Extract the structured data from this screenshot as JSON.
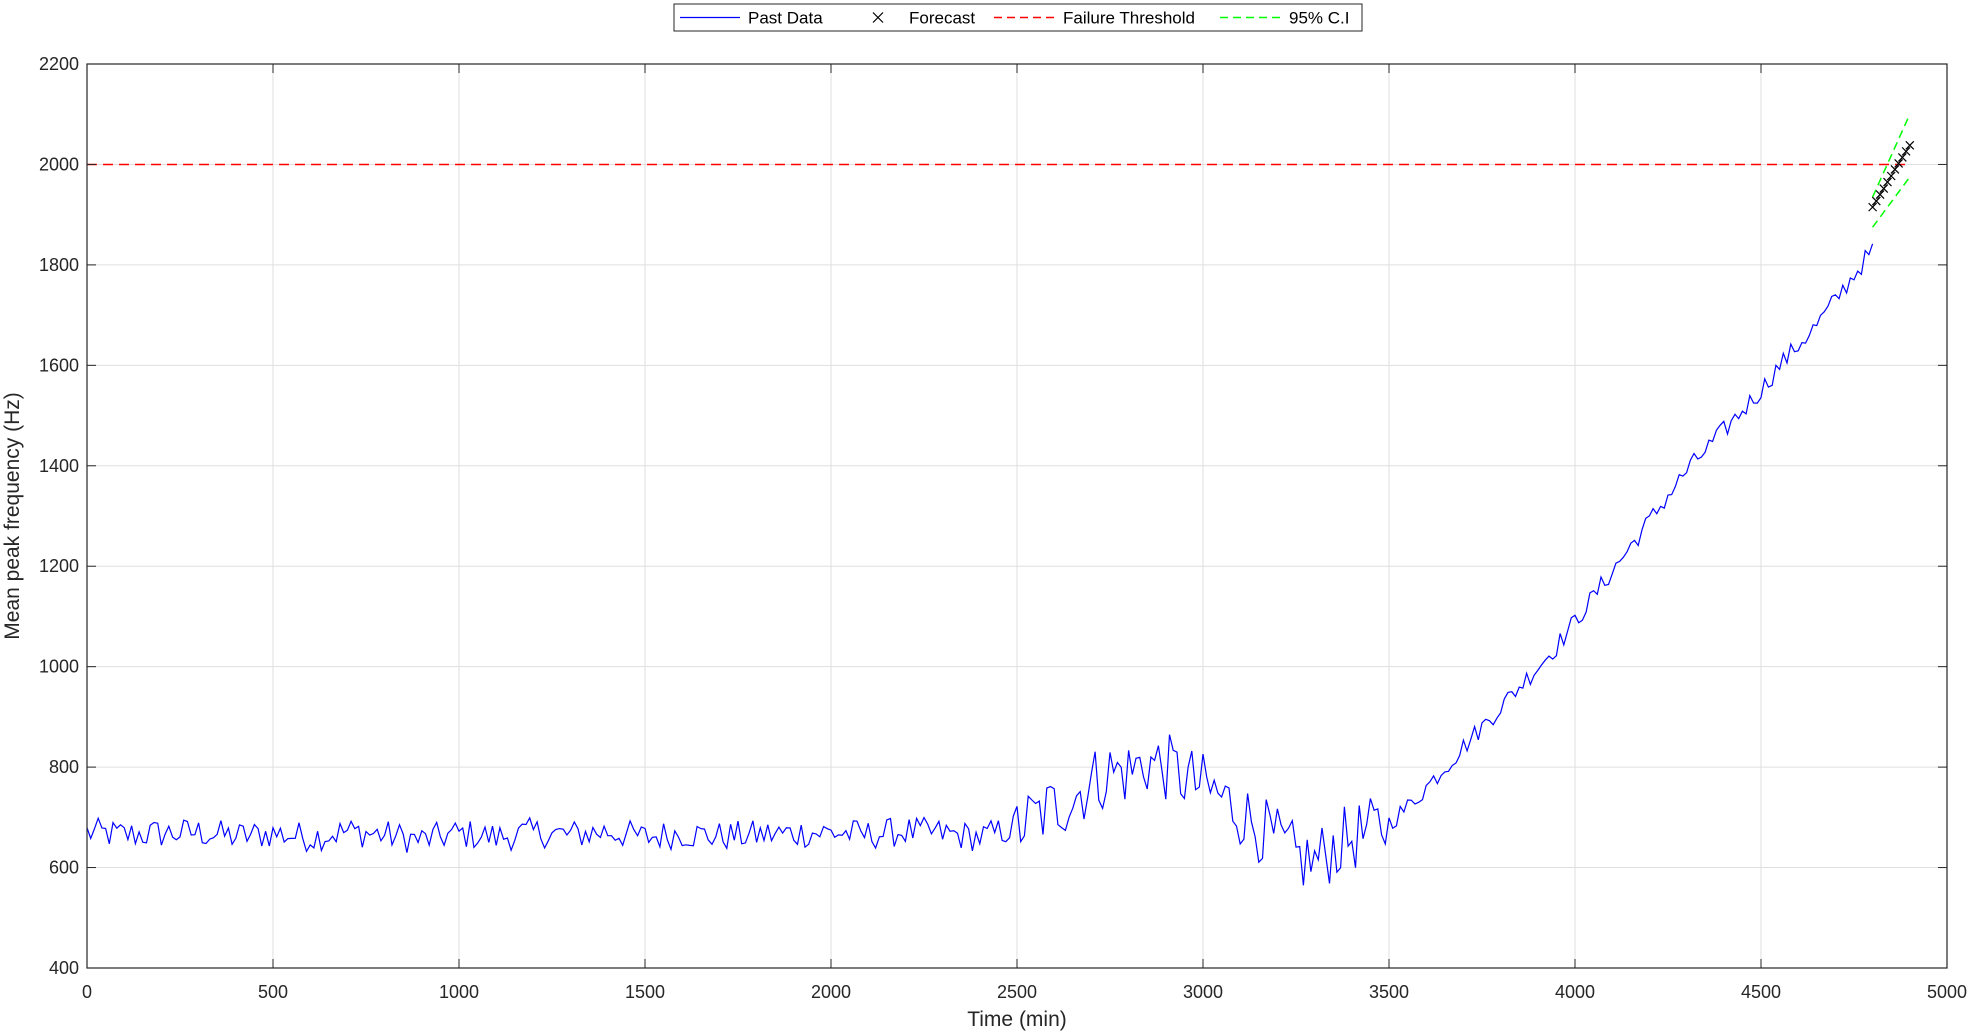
{
  "chart_data": {
    "type": "line",
    "xlabel": "Time (min)",
    "ylabel": "Mean peak frequency (Hz)",
    "xlim": [
      0,
      5000
    ],
    "ylim": [
      400,
      2200
    ],
    "xticks": [
      0,
      500,
      1000,
      1500,
      2000,
      2500,
      3000,
      3500,
      4000,
      4500,
      5000
    ],
    "yticks": [
      400,
      600,
      800,
      1000,
      1200,
      1400,
      1600,
      1800,
      2000,
      2200
    ],
    "grid": true,
    "legend_position": "top-center",
    "legend": [
      {
        "label": "Past Data",
        "style": "solid",
        "color": "#0000ff"
      },
      {
        "label": "Forecast",
        "style": "marker-x",
        "color": "#000000"
      },
      {
        "label": "Failure Threshold",
        "style": "dashed",
        "color": "#ff0000"
      },
      {
        "label": "95% C.I",
        "style": "dashed",
        "color": "#00ff00"
      }
    ],
    "series": [
      {
        "name": "Past Data",
        "color": "#0000ff",
        "x": [
          0,
          100,
          200,
          300,
          400,
          500,
          600,
          700,
          800,
          900,
          1000,
          1100,
          1200,
          1300,
          1400,
          1500,
          1600,
          1700,
          1800,
          1900,
          2000,
          2100,
          2200,
          2300,
          2400,
          2500,
          2550,
          2600,
          2650,
          2700,
          2750,
          2800,
          2850,
          2900,
          2950,
          3000,
          3050,
          3100,
          3150,
          3200,
          3250,
          3300,
          3350,
          3400,
          3450,
          3500,
          3550,
          3600,
          3650,
          3700,
          3750,
          3800,
          3850,
          3900,
          3950,
          4000,
          4050,
          4100,
          4150,
          4200,
          4250,
          4300,
          4350,
          4400,
          4450,
          4500,
          4550,
          4600,
          4650,
          4700,
          4750,
          4800
        ],
        "y": [
          670,
          665,
          668,
          670,
          662,
          668,
          660,
          672,
          665,
          655,
          668,
          660,
          670,
          665,
          672,
          660,
          668,
          662,
          665,
          668,
          670,
          665,
          672,
          668,
          660,
          680,
          700,
          720,
          740,
          770,
          790,
          790,
          810,
          800,
          780,
          760,
          740,
          710,
          680,
          650,
          620,
          610,
          640,
          660,
          670,
          690,
          720,
          760,
          800,
          840,
          880,
          920,
          960,
          1000,
          1040,
          1090,
          1140,
          1190,
          1240,
          1290,
          1340,
          1390,
          1430,
          1470,
          1510,
          1550,
          1600,
          1640,
          1680,
          1730,
          1780,
          1830
        ],
        "noise": 45
      },
      {
        "name": "Forecast",
        "color": "#000000",
        "x": [
          4800,
          4810,
          4820,
          4830,
          4840,
          4850,
          4860,
          4870,
          4880,
          4890,
          4900
        ],
        "y": [
          1915,
          1927,
          1940,
          1952,
          1965,
          1977,
          1990,
          2002,
          2014,
          2026,
          2038
        ]
      },
      {
        "name": "Failure Threshold",
        "color": "#ff0000",
        "x": [
          0,
          4900
        ],
        "y": [
          2000,
          2000
        ]
      },
      {
        "name": "95% C.I upper",
        "color": "#00ff00",
        "x": [
          4800,
          4900
        ],
        "y": [
          1935,
          2100
        ]
      },
      {
        "name": "95% C.I lower",
        "color": "#00ff00",
        "x": [
          4800,
          4900
        ],
        "y": [
          1875,
          1975
        ]
      }
    ]
  }
}
